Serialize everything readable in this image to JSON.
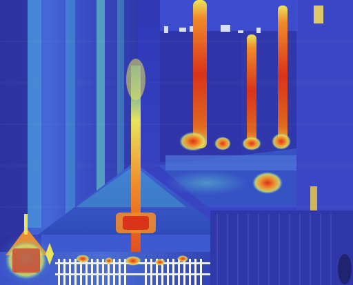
{
  "image": {
    "kind": "attention heatmap overlay on a painting of a street scene",
    "colormap": [
      "#2b2f9a",
      "#3c5bd6",
      "#46c7d8",
      "#d9e86a",
      "#f0a02a",
      "#d9331a"
    ],
    "palette": {
      "sky_blue": "#3a43c4",
      "building_navy": "#2b3090",
      "roof_blue": "#3e55c9",
      "fence_white": "#e8eef6",
      "hot_red": "#d9331a",
      "hot_orange": "#f08a2a",
      "warm_yellow": "#e9e45a",
      "cyan": "#4fd2d8"
    }
  }
}
